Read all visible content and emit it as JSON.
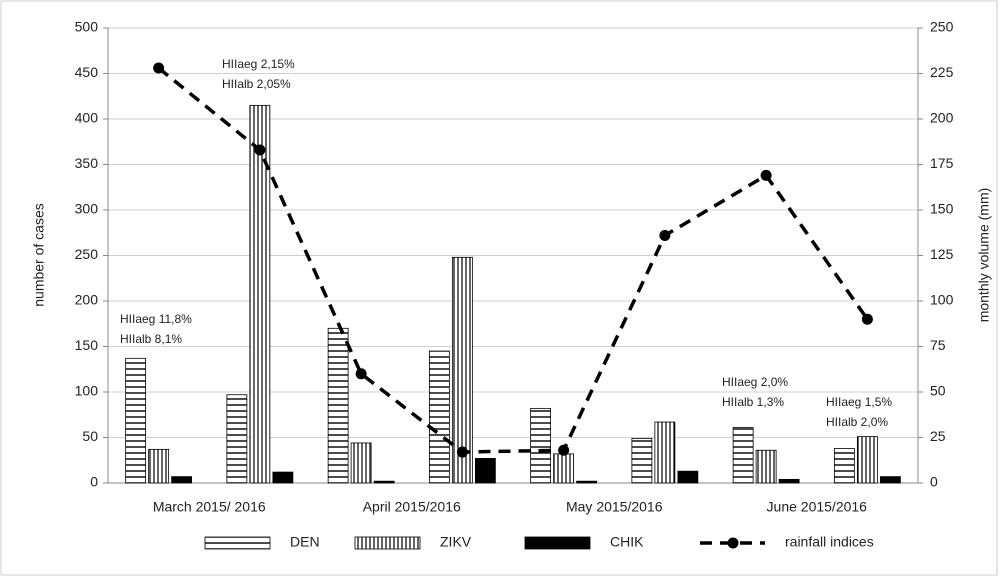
{
  "chart_data": {
    "type": "bar",
    "y_label": "number of cases",
    "y2_label": "monthly volume (mm)",
    "categories": [
      "March 2015/ 2016",
      null,
      "April 2015/2016",
      null,
      "May 2015/2016",
      null,
      "June 2015/2016",
      null
    ],
    "series": [
      {
        "name": "DEN",
        "type": "bar",
        "pattern": "horizontal",
        "color": "#000000",
        "values": [
          137,
          97,
          170,
          145,
          82,
          49,
          61,
          38
        ]
      },
      {
        "name": "ZIKV",
        "type": "bar",
        "pattern": "vertical",
        "color": "#000000",
        "values": [
          37,
          415,
          44,
          248,
          32,
          67,
          36,
          51
        ]
      },
      {
        "name": "CHIK",
        "type": "bar",
        "pattern": "solid",
        "color": "#000000",
        "values": [
          7,
          12,
          2,
          27,
          2,
          13,
          4,
          7
        ]
      },
      {
        "name": "rainfall indices",
        "type": "line",
        "axis": "y2",
        "color": "#000000",
        "dashed": true,
        "values": [
          228,
          183,
          60,
          17,
          18,
          136,
          169,
          90
        ]
      }
    ],
    "ylim": [
      0,
      500
    ],
    "yticks": [
      0,
      50,
      100,
      150,
      200,
      250,
      300,
      350,
      400,
      450,
      500
    ],
    "y2lim": [
      0,
      250
    ],
    "y2ticks": [
      0,
      25,
      50,
      75,
      100,
      125,
      150,
      175,
      200,
      225,
      250
    ],
    "grid": true,
    "legend": "bottom",
    "annotations": [
      [
        "HIIaeg 11,8%",
        "HIIalb 8,1%"
      ],
      [
        "HIIaeg 2,15%",
        "HIIalb 2,05%"
      ],
      [
        "HIIaeg 2,0%",
        "HIIalb 1,3%"
      ],
      [
        "HIIaeg 1,5%",
        "HIIalb 2,0%"
      ]
    ]
  }
}
